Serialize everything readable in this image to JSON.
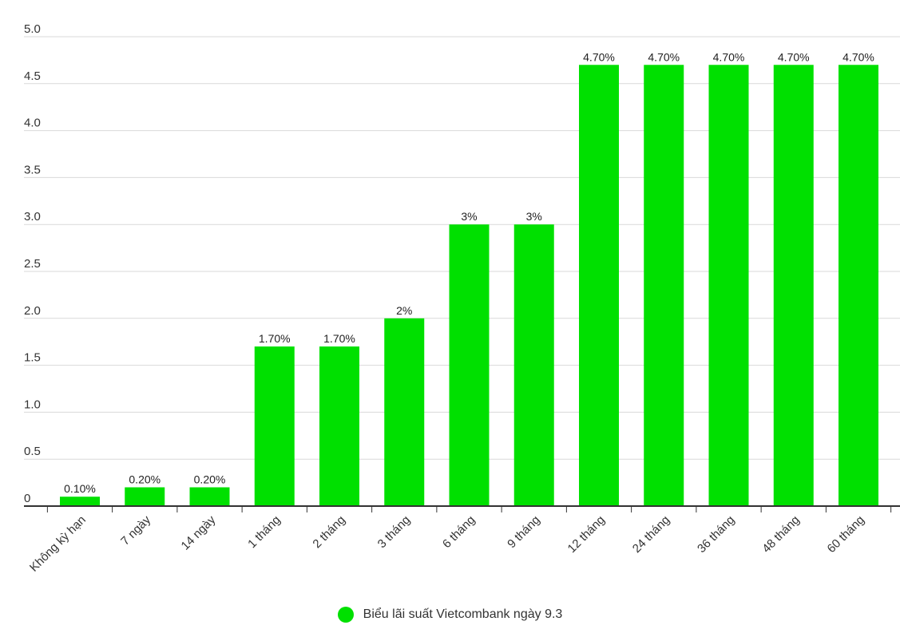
{
  "chart_data": {
    "type": "bar",
    "categories": [
      "Không kỳ hạn",
      "7 ngày",
      "14 ngày",
      "1 tháng",
      "2 tháng",
      "3 tháng",
      "6 tháng",
      "9 tháng",
      "12 tháng",
      "24 tháng",
      "36 tháng",
      "48 tháng",
      "60 tháng"
    ],
    "series": [
      {
        "name": "Biểu lãi suất Vietcombank ngày 9.3",
        "values": [
          0.1,
          0.2,
          0.2,
          1.7,
          1.7,
          2,
          3,
          3,
          4.7,
          4.7,
          4.7,
          4.7,
          4.7
        ],
        "labels": [
          "0.10%",
          "0.20%",
          "0.20%",
          "1.70%",
          "1.70%",
          "2%",
          "3%",
          "3%",
          "4.70%",
          "4.70%",
          "4.70%",
          "4.70%",
          "4.70%"
        ]
      }
    ],
    "yticks": [
      "0",
      "0.5",
      "1.0",
      "1.5",
      "2.0",
      "2.5",
      "3.0",
      "3.5",
      "4.0",
      "4.5",
      "5.0"
    ],
    "ylim": [
      0,
      5
    ],
    "grid": true,
    "legend_position": "bottom-center"
  },
  "colors": {
    "bar": "#00e000",
    "grid": "#d9d9d9",
    "axis": "#333333"
  }
}
